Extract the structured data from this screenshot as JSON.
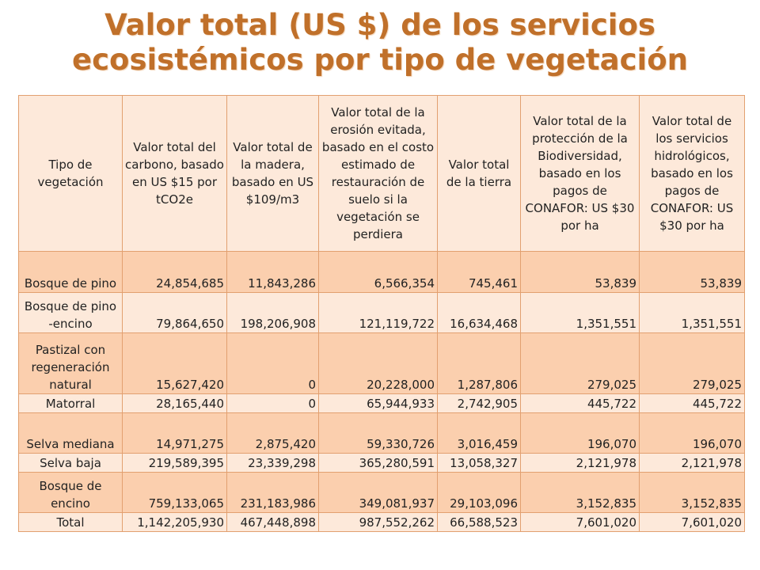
{
  "title": {
    "line1": "Valor total (US $) de los servicios",
    "line2": "ecosistémicos por tipo de vegetación"
  },
  "table": {
    "headers": [
      "Tipo de vegetación",
      "Valor total del carbono, basado en US $15 por tCO2e",
      "Valor total de la madera, basado en US $109/m3",
      "Valor total de la erosión evitada, basado en el costo estimado de restauración de suelo si la vegetación se perdiera",
      "Valor total de la tierra",
      "Valor total de la protección de la Biodiversidad, basado en los pagos de CONAFOR: US $30 por ha",
      "Valor total de los servicios hidrológicos, basado en los pagos de CONAFOR: US $30 por ha"
    ],
    "rows": [
      [
        "Bosque de pino",
        "24,854,685",
        "11,843,286",
        "6,566,354",
        "745,461",
        "53,839",
        "53,839"
      ],
      [
        "Bosque de pino -encino",
        "79,864,650",
        "198,206,908",
        "121,119,722",
        "16,634,468",
        "1,351,551",
        "1,351,551"
      ],
      [
        "Pastizal con regeneración natural",
        "15,627,420",
        "0",
        "20,228,000",
        "1,287,806",
        "279,025",
        "279,025"
      ],
      [
        "Matorral",
        "28,165,440",
        "0",
        "65,944,933",
        "2,742,905",
        "445,722",
        "445,722"
      ],
      [
        "Selva mediana",
        "14,971,275",
        "2,875,420",
        "59,330,726",
        "3,016,459",
        "196,070",
        "196,070"
      ],
      [
        "Selva baja",
        "219,589,395",
        "23,339,298",
        "365,280,591",
        "13,058,327",
        "2,121,978",
        "2,121,978"
      ],
      [
        "Bosque de encino",
        "759,133,065",
        "231,183,986",
        "349,081,937",
        "29,103,096",
        "3,152,835",
        "3,152,835"
      ],
      [
        "Total",
        "1,142,205,930",
        "467,448,898",
        "987,552,262",
        "66,588,523",
        "7,601,020",
        "7,601,020"
      ]
    ]
  }
}
